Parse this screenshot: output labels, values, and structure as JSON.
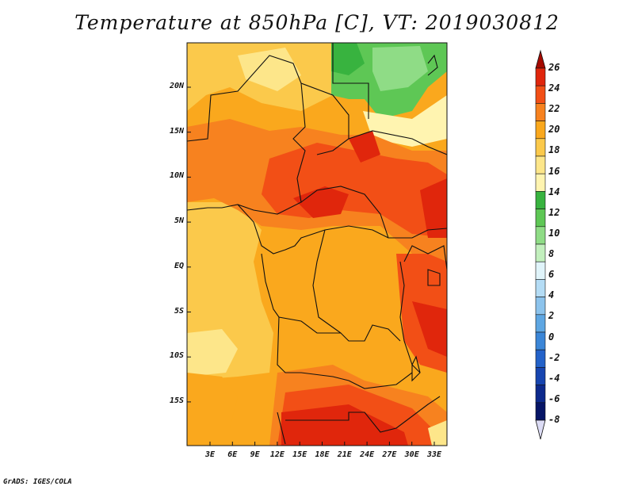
{
  "title": "Temperature at 850hPa [C], VT: 2019030812",
  "credit": "GrADS: IGES/COLA",
  "map": {
    "y_axis_labels": [
      "20N",
      "15N",
      "10N",
      "5N",
      "EQ",
      "5S",
      "10S",
      "15S"
    ],
    "x_axis_labels": [
      "3E",
      "6E",
      "9E",
      "12E",
      "15E",
      "18E",
      "21E",
      "24E",
      "27E",
      "30E",
      "33E"
    ]
  },
  "colorbar": {
    "labels": [
      "26",
      "24",
      "22",
      "20",
      "18",
      "16",
      "14",
      "12",
      "10",
      "8",
      "6",
      "4",
      "2",
      "0",
      "-2",
      "-4",
      "-6",
      "-8"
    ],
    "colors": [
      "#a50a00",
      "#e0260c",
      "#f24f16",
      "#f7821f",
      "#faa81d",
      "#fbc94b",
      "#fde68a",
      "#fff4b0",
      "#38b33f",
      "#5ec755",
      "#8fdc86",
      "#c2efbd",
      "#e0f4fa",
      "#b4dcf5",
      "#8cc3ec",
      "#5ea6e2",
      "#3b86d7",
      "#2362c9",
      "#1745b0",
      "#0d2a8d",
      "#061566",
      "#dcdcf5"
    ]
  }
}
